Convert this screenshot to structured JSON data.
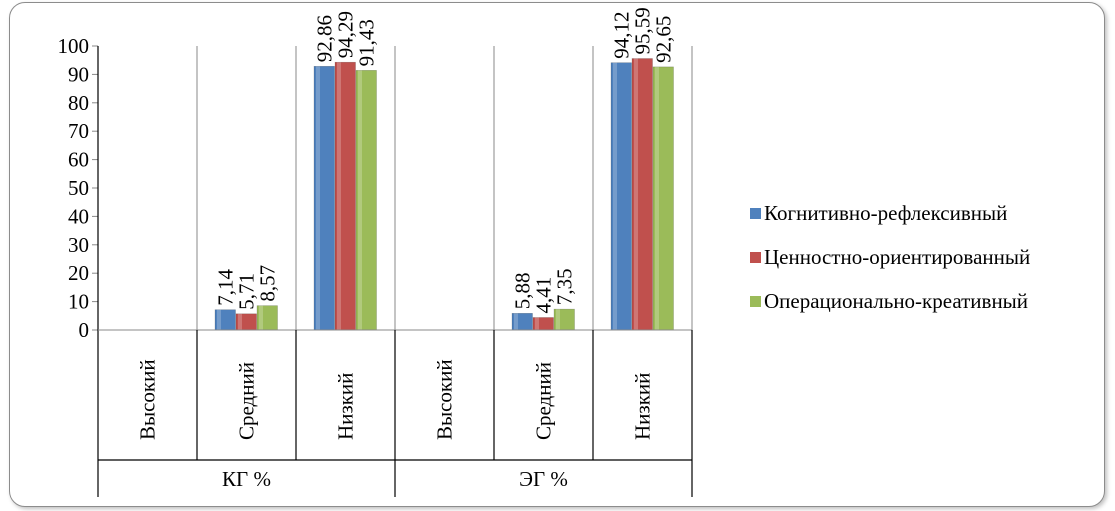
{
  "chart_data": {
    "type": "bar",
    "title": "",
    "xlabel": "",
    "ylabel": "",
    "ylim": [
      0,
      100
    ],
    "yticks": [
      "0",
      "10",
      "20",
      "30",
      "40",
      "50",
      "60",
      "70",
      "80",
      "90",
      "100"
    ],
    "groups": [
      "КГ %",
      "ЭГ %"
    ],
    "categories": [
      "Высокий",
      "Средний",
      "Низкий",
      "Высокий",
      "Средний",
      "Низкий"
    ],
    "legend_position": "right",
    "grid": "vertical",
    "series": [
      {
        "name": "Когнитивно-рефлексивный",
        "color": "#4f81bd",
        "values": [
          0,
          7.14,
          92.86,
          0,
          5.88,
          94.12
        ],
        "labels": [
          "",
          "7,14",
          "92,86",
          "",
          "5,88",
          "94,12"
        ]
      },
      {
        "name": "Ценностно-ориентированный",
        "color": "#c0504d",
        "values": [
          0,
          5.71,
          94.29,
          0,
          4.41,
          95.59
        ],
        "labels": [
          "",
          "5,71",
          "94,29",
          "",
          "4,41",
          "95,59"
        ]
      },
      {
        "name": "Операционально-креативный",
        "color": "#9bbb59",
        "values": [
          0,
          8.57,
          91.43,
          0,
          7.35,
          92.65
        ],
        "labels": [
          "",
          "8,57",
          "91,43",
          "",
          "7,35",
          "92,65"
        ]
      }
    ]
  }
}
